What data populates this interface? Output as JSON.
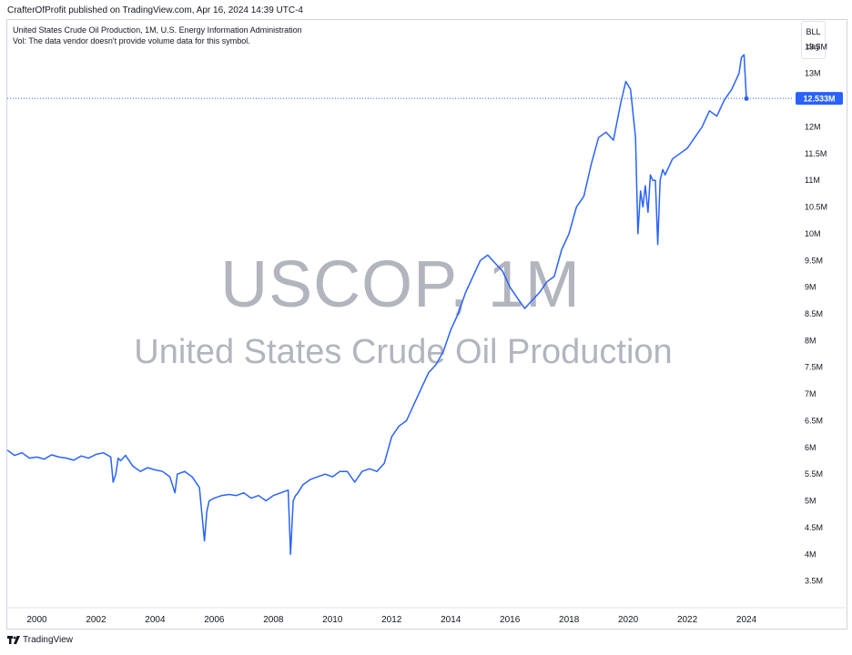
{
  "header": {
    "published_line": "CrafterOfProfit published on TradingView.com, Apr 16, 2024 14:39 UTC-4"
  },
  "legend": {
    "series_line": "United States Crude Oil Production, 1M, U.S. Energy Information Administration",
    "volume_line": "Vol: The data vendor doesn't provide volume data for this symbol."
  },
  "timeframe_box": {
    "unit": "BLL",
    "interval": "day"
  },
  "watermark": {
    "symbol": "USCOP, 1M",
    "name": "United States Crude Oil Production"
  },
  "price_tag": {
    "label": "12.533M",
    "color": "#2962ff"
  },
  "footer": {
    "brand": "TradingView"
  },
  "colors": {
    "line": "#2962ff",
    "axis_text": "#131722",
    "watermark": "#b2b5be",
    "grid_border": "#d1d4dc"
  },
  "chart_data": {
    "type": "line",
    "series": [
      {
        "name": "United States Crude Oil Production",
        "x": [
          1999.0,
          1999.25,
          1999.5,
          1999.75,
          2000.0,
          2000.25,
          2000.5,
          2000.75,
          2001.0,
          2001.25,
          2001.5,
          2001.75,
          2002.0,
          2002.25,
          2002.5,
          2002.58,
          2002.67,
          2002.75,
          2002.83,
          2003.0,
          2003.25,
          2003.5,
          2003.75,
          2004.0,
          2004.25,
          2004.5,
          2004.67,
          2004.75,
          2005.0,
          2005.25,
          2005.5,
          2005.67,
          2005.75,
          2005.83,
          2006.0,
          2006.25,
          2006.5,
          2006.75,
          2007.0,
          2007.25,
          2007.5,
          2007.75,
          2008.0,
          2008.25,
          2008.5,
          2008.58,
          2008.67,
          2008.75,
          2008.83,
          2009.0,
          2009.25,
          2009.5,
          2009.75,
          2010.0,
          2010.25,
          2010.5,
          2010.75,
          2011.0,
          2011.25,
          2011.5,
          2011.75,
          2012.0,
          2012.25,
          2012.5,
          2012.75,
          2013.0,
          2013.25,
          2013.5,
          2013.75,
          2014.0,
          2014.25,
          2014.5,
          2014.75,
          2015.0,
          2015.25,
          2015.5,
          2015.75,
          2016.0,
          2016.25,
          2016.5,
          2016.75,
          2017.0,
          2017.25,
          2017.5,
          2017.75,
          2018.0,
          2018.25,
          2018.5,
          2018.75,
          2019.0,
          2019.25,
          2019.5,
          2019.75,
          2019.92,
          2020.08,
          2020.25,
          2020.33,
          2020.42,
          2020.5,
          2020.58,
          2020.67,
          2020.75,
          2020.83,
          2020.92,
          2021.0,
          2021.08,
          2021.17,
          2021.25,
          2021.5,
          2021.75,
          2022.0,
          2022.25,
          2022.5,
          2022.75,
          2023.0,
          2023.25,
          2023.5,
          2023.75,
          2023.83,
          2023.92,
          2024.0
        ],
        "values": [
          5.95,
          5.85,
          5.9,
          5.8,
          5.82,
          5.78,
          5.86,
          5.82,
          5.8,
          5.76,
          5.84,
          5.8,
          5.87,
          5.9,
          5.82,
          5.35,
          5.5,
          5.8,
          5.75,
          5.85,
          5.65,
          5.55,
          5.62,
          5.58,
          5.55,
          5.45,
          5.15,
          5.5,
          5.55,
          5.45,
          5.25,
          4.25,
          4.8,
          5.0,
          5.05,
          5.1,
          5.12,
          5.1,
          5.15,
          5.05,
          5.1,
          5.0,
          5.1,
          5.15,
          5.2,
          4.0,
          5.0,
          5.1,
          5.15,
          5.3,
          5.4,
          5.45,
          5.5,
          5.45,
          5.55,
          5.55,
          5.35,
          5.55,
          5.6,
          5.55,
          5.7,
          6.2,
          6.4,
          6.5,
          6.8,
          7.1,
          7.4,
          7.55,
          7.8,
          8.2,
          8.5,
          8.9,
          9.2,
          9.5,
          9.6,
          9.45,
          9.3,
          9.0,
          8.8,
          8.6,
          8.75,
          8.9,
          9.1,
          9.2,
          9.7,
          10.0,
          10.5,
          10.7,
          11.3,
          11.8,
          11.9,
          11.75,
          12.45,
          12.85,
          12.7,
          11.8,
          10.0,
          10.8,
          10.5,
          10.9,
          10.4,
          11.1,
          11.0,
          11.0,
          9.8,
          11.0,
          11.2,
          11.1,
          11.4,
          11.5,
          11.6,
          11.8,
          12.0,
          12.3,
          12.2,
          12.5,
          12.7,
          13.0,
          13.3,
          13.35,
          12.53
        ]
      }
    ],
    "y_ticks": [
      "3.5M",
      "4M",
      "4.5M",
      "5M",
      "5.5M",
      "6M",
      "6.5M",
      "7M",
      "7.5M",
      "8M",
      "8.5M",
      "9M",
      "9.5M",
      "10M",
      "10.5M",
      "11M",
      "11.5M",
      "12M",
      "12.5M",
      "13M",
      "13.5M"
    ],
    "y_tick_values": [
      3.5,
      4,
      4.5,
      5,
      5.5,
      6,
      6.5,
      7,
      7.5,
      8,
      8.5,
      9,
      9.5,
      10,
      10.5,
      11,
      11.5,
      12,
      12.5,
      13,
      13.5
    ],
    "x_ticks": [
      "2000",
      "2002",
      "2004",
      "2006",
      "2008",
      "2010",
      "2012",
      "2014",
      "2016",
      "2018",
      "2020",
      "2022",
      "2024"
    ],
    "x_tick_values": [
      2000,
      2002,
      2004,
      2006,
      2008,
      2010,
      2012,
      2014,
      2016,
      2018,
      2020,
      2022,
      2024
    ],
    "xlim": [
      1999.0,
      2025.6
    ],
    "ylim": [
      3.0,
      14.0
    ],
    "last_value": 12.533,
    "grid": false
  }
}
